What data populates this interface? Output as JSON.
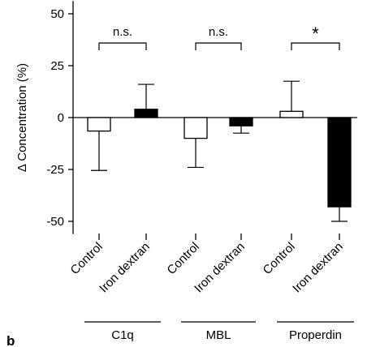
{
  "chart_data": {
    "type": "bar",
    "ylabel": "Δ Concentration (%)",
    "ylim": [
      -55,
      55
    ],
    "yticks": [
      50,
      25,
      0,
      -25,
      -50
    ],
    "ytick_labels": [
      "50",
      "25",
      "0",
      "-25",
      "-50"
    ],
    "groups": [
      {
        "name": "C1q",
        "significance": "n.s.",
        "bars": [
          {
            "label": "Control",
            "value": -6.5,
            "error": 19,
            "fill": "white"
          },
          {
            "label": "Iron dextran",
            "value": 4,
            "error": 12,
            "fill": "black"
          }
        ]
      },
      {
        "name": "MBL",
        "significance": "n.s.",
        "bars": [
          {
            "label": "Control",
            "value": -10,
            "error": 14,
            "fill": "white"
          },
          {
            "label": "Iron dextran",
            "value": -4,
            "error": 3.5,
            "fill": "black"
          }
        ]
      },
      {
        "name": "Properdin",
        "significance": "*",
        "bars": [
          {
            "label": "Control",
            "value": 3,
            "error": 14.5,
            "fill": "white"
          },
          {
            "label": "Iron dextran",
            "value": -43,
            "error": 7,
            "fill": "black"
          }
        ]
      }
    ],
    "colors": {
      "white": "#ffffff",
      "black": "#000000"
    }
  },
  "panel_letter": "b"
}
